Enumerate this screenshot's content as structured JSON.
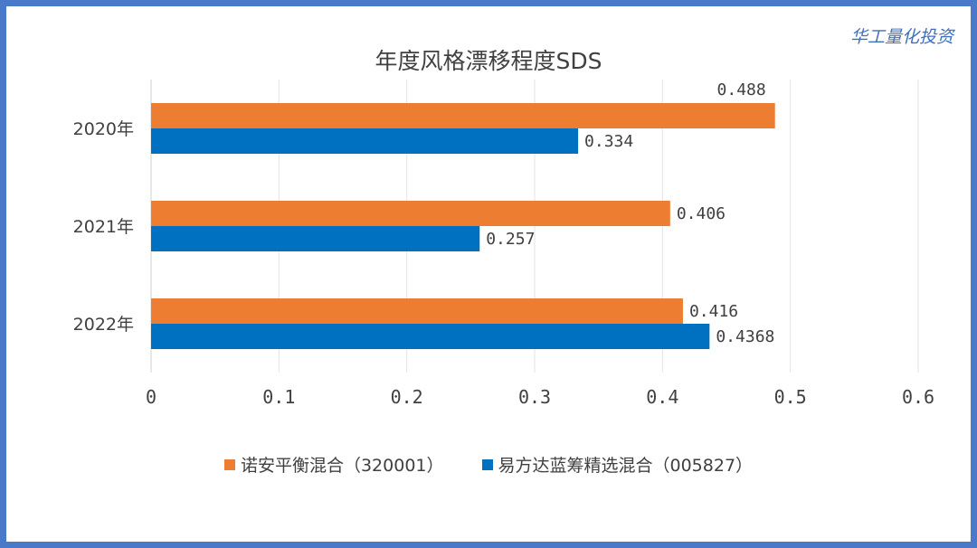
{
  "brand": "华工量化投资",
  "chart_data": {
    "type": "bar",
    "orientation": "horizontal",
    "title": "年度风格漂移程度SDS",
    "categories": [
      "2020年",
      "2021年",
      "2022年"
    ],
    "series": [
      {
        "name": "诺安平衡混合（320001）",
        "values": [
          0.488,
          0.406,
          0.416
        ],
        "labels": [
          "0.488",
          "0.406",
          "0.416"
        ],
        "color": "#ed7d31"
      },
      {
        "name": "易方达蓝筹精选混合（005827）",
        "values": [
          0.334,
          0.257,
          0.4368
        ],
        "labels": [
          "0.334",
          "0.257",
          "0.4368"
        ],
        "color": "#0070c0"
      }
    ],
    "xlim": [
      0,
      0.6
    ],
    "xticks": [
      "0",
      "0.1",
      "0.2",
      "0.3",
      "0.4",
      "0.5",
      "0.6"
    ],
    "grid": true,
    "legend_position": "bottom"
  }
}
